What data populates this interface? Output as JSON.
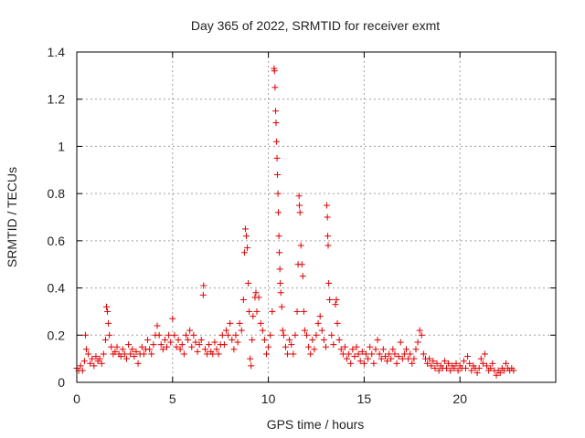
{
  "chart_data": {
    "type": "scatter",
    "title": "Day 365 of 2022, SRMTID for receiver exmt",
    "xlabel": "GPS time / hours",
    "ylabel": "SRMTID / TECUs",
    "xlim": [
      0,
      25
    ],
    "ylim": [
      0,
      1.4
    ],
    "xticks": [
      0,
      5,
      10,
      15,
      20
    ],
    "yticks": [
      0,
      0.2,
      0.4,
      0.6,
      0.8,
      1,
      1.2,
      1.4
    ],
    "xtick_labels": [
      "0",
      "5",
      "10",
      "15",
      "20"
    ],
    "ytick_labels": [
      "0",
      "0.2",
      "0.4",
      "0.6",
      "0.8",
      "1",
      "1.2",
      "1.4"
    ],
    "grid": true,
    "marker": "+",
    "color": "#e00000",
    "series": [
      {
        "name": "SRMTID",
        "points": [
          [
            0.0,
            0.06
          ],
          [
            0.1,
            0.05
          ],
          [
            0.2,
            0.07
          ],
          [
            0.3,
            0.05
          ],
          [
            0.4,
            0.09
          ],
          [
            0.45,
            0.2
          ],
          [
            0.5,
            0.14
          ],
          [
            0.6,
            0.12
          ],
          [
            0.7,
            0.08
          ],
          [
            0.8,
            0.1
          ],
          [
            0.9,
            0.07
          ],
          [
            1.0,
            0.11
          ],
          [
            1.1,
            0.09
          ],
          [
            1.2,
            0.1
          ],
          [
            1.3,
            0.08
          ],
          [
            1.4,
            0.12
          ],
          [
            1.5,
            0.18
          ],
          [
            1.55,
            0.32
          ],
          [
            1.6,
            0.3
          ],
          [
            1.65,
            0.25
          ],
          [
            1.7,
            0.2
          ],
          [
            1.8,
            0.15
          ],
          [
            1.9,
            0.12
          ],
          [
            2.0,
            0.13
          ],
          [
            2.1,
            0.15
          ],
          [
            2.2,
            0.12
          ],
          [
            2.3,
            0.11
          ],
          [
            2.4,
            0.14
          ],
          [
            2.5,
            0.12
          ],
          [
            2.6,
            0.1
          ],
          [
            2.7,
            0.16
          ],
          [
            2.8,
            0.12
          ],
          [
            2.9,
            0.14
          ],
          [
            3.0,
            0.11
          ],
          [
            3.1,
            0.13
          ],
          [
            3.2,
            0.08
          ],
          [
            3.3,
            0.12
          ],
          [
            3.4,
            0.15
          ],
          [
            3.5,
            0.12
          ],
          [
            3.6,
            0.14
          ],
          [
            3.7,
            0.18
          ],
          [
            3.8,
            0.14
          ],
          [
            3.9,
            0.12
          ],
          [
            4.0,
            0.16
          ],
          [
            4.1,
            0.2
          ],
          [
            4.2,
            0.24
          ],
          [
            4.3,
            0.2
          ],
          [
            4.4,
            0.16
          ],
          [
            4.5,
            0.14
          ],
          [
            4.6,
            0.18
          ],
          [
            4.7,
            0.15
          ],
          [
            4.8,
            0.2
          ],
          [
            4.9,
            0.17
          ],
          [
            5.0,
            0.27
          ],
          [
            5.1,
            0.2
          ],
          [
            5.2,
            0.15
          ],
          [
            5.3,
            0.18
          ],
          [
            5.4,
            0.14
          ],
          [
            5.5,
            0.16
          ],
          [
            5.6,
            0.12
          ],
          [
            5.7,
            0.2
          ],
          [
            5.8,
            0.18
          ],
          [
            5.9,
            0.22
          ],
          [
            6.0,
            0.15
          ],
          [
            6.1,
            0.2
          ],
          [
            6.2,
            0.17
          ],
          [
            6.3,
            0.13
          ],
          [
            6.4,
            0.16
          ],
          [
            6.5,
            0.18
          ],
          [
            6.6,
            0.37
          ],
          [
            6.62,
            0.41
          ],
          [
            6.7,
            0.14
          ],
          [
            6.8,
            0.12
          ],
          [
            6.9,
            0.16
          ],
          [
            7.0,
            0.13
          ],
          [
            7.1,
            0.12
          ],
          [
            7.2,
            0.17
          ],
          [
            7.3,
            0.14
          ],
          [
            7.4,
            0.12
          ],
          [
            7.5,
            0.16
          ],
          [
            7.6,
            0.2
          ],
          [
            7.7,
            0.16
          ],
          [
            7.8,
            0.22
          ],
          [
            7.9,
            0.2
          ],
          [
            8.0,
            0.25
          ],
          [
            8.1,
            0.18
          ],
          [
            8.2,
            0.14
          ],
          [
            8.3,
            0.2
          ],
          [
            8.4,
            0.17
          ],
          [
            8.5,
            0.25
          ],
          [
            8.6,
            0.22
          ],
          [
            8.7,
            0.35
          ],
          [
            8.75,
            0.55
          ],
          [
            8.8,
            0.65
          ],
          [
            8.85,
            0.62
          ],
          [
            8.9,
            0.57
          ],
          [
            8.95,
            0.42
          ],
          [
            9.0,
            0.3
          ],
          [
            9.05,
            0.1
          ],
          [
            9.1,
            0.07
          ],
          [
            9.15,
            0.18
          ],
          [
            9.2,
            0.28
          ],
          [
            9.3,
            0.36
          ],
          [
            9.35,
            0.38
          ],
          [
            9.4,
            0.3
          ],
          [
            9.5,
            0.36
          ],
          [
            9.6,
            0.25
          ],
          [
            9.7,
            0.22
          ],
          [
            9.8,
            0.18
          ],
          [
            9.9,
            0.12
          ],
          [
            10.0,
            0.15
          ],
          [
            10.1,
            0.2
          ],
          [
            10.2,
            0.3
          ],
          [
            10.3,
            1.33
          ],
          [
            10.32,
            1.32
          ],
          [
            10.35,
            1.25
          ],
          [
            10.38,
            1.15
          ],
          [
            10.4,
            1.1
          ],
          [
            10.43,
            1.02
          ],
          [
            10.45,
            0.95
          ],
          [
            10.47,
            0.88
          ],
          [
            10.5,
            0.8
          ],
          [
            10.52,
            0.72
          ],
          [
            10.55,
            0.62
          ],
          [
            10.57,
            0.55
          ],
          [
            10.6,
            0.48
          ],
          [
            10.62,
            0.42
          ],
          [
            10.65,
            0.38
          ],
          [
            10.7,
            0.32
          ],
          [
            10.75,
            0.22
          ],
          [
            10.8,
            0.2
          ],
          [
            10.9,
            0.15
          ],
          [
            11.0,
            0.12
          ],
          [
            11.1,
            0.18
          ],
          [
            11.2,
            0.16
          ],
          [
            11.3,
            0.12
          ],
          [
            11.4,
            0.2
          ],
          [
            11.5,
            0.3
          ],
          [
            11.55,
            0.5
          ],
          [
            11.6,
            0.79
          ],
          [
            11.62,
            0.75
          ],
          [
            11.65,
            0.72
          ],
          [
            11.7,
            0.58
          ],
          [
            11.75,
            0.5
          ],
          [
            11.8,
            0.45
          ],
          [
            11.85,
            0.3
          ],
          [
            11.9,
            0.22
          ],
          [
            12.0,
            0.2
          ],
          [
            12.1,
            0.15
          ],
          [
            12.2,
            0.12
          ],
          [
            12.3,
            0.18
          ],
          [
            12.4,
            0.14
          ],
          [
            12.5,
            0.2
          ],
          [
            12.6,
            0.25
          ],
          [
            12.7,
            0.28
          ],
          [
            12.8,
            0.22
          ],
          [
            12.9,
            0.18
          ],
          [
            13.0,
            0.15
          ],
          [
            13.05,
            0.75
          ],
          [
            13.08,
            0.7
          ],
          [
            13.1,
            0.62
          ],
          [
            13.12,
            0.58
          ],
          [
            13.15,
            0.42
          ],
          [
            13.2,
            0.35
          ],
          [
            13.3,
            0.2
          ],
          [
            13.4,
            0.16
          ],
          [
            13.5,
            0.33
          ],
          [
            13.55,
            0.35
          ],
          [
            13.6,
            0.25
          ],
          [
            13.7,
            0.18
          ],
          [
            13.8,
            0.14
          ],
          [
            13.9,
            0.12
          ],
          [
            14.0,
            0.15
          ],
          [
            14.1,
            0.1
          ],
          [
            14.2,
            0.12
          ],
          [
            14.3,
            0.08
          ],
          [
            14.4,
            0.14
          ],
          [
            14.5,
            0.11
          ],
          [
            14.6,
            0.15
          ],
          [
            14.7,
            0.12
          ],
          [
            14.8,
            0.09
          ],
          [
            14.9,
            0.13
          ],
          [
            15.0,
            0.08
          ],
          [
            15.1,
            0.12
          ],
          [
            15.2,
            0.1
          ],
          [
            15.3,
            0.15
          ],
          [
            15.4,
            0.12
          ],
          [
            15.5,
            0.08
          ],
          [
            15.6,
            0.14
          ],
          [
            15.7,
            0.18
          ],
          [
            15.8,
            0.12
          ],
          [
            15.9,
            0.1
          ],
          [
            16.0,
            0.14
          ],
          [
            16.1,
            0.11
          ],
          [
            16.2,
            0.09
          ],
          [
            16.3,
            0.12
          ],
          [
            16.4,
            0.1
          ],
          [
            16.5,
            0.14
          ],
          [
            16.6,
            0.12
          ],
          [
            16.7,
            0.08
          ],
          [
            16.8,
            0.11
          ],
          [
            16.9,
            0.17
          ],
          [
            17.0,
            0.1
          ],
          [
            17.1,
            0.12
          ],
          [
            17.2,
            0.14
          ],
          [
            17.3,
            0.1
          ],
          [
            17.4,
            0.12
          ],
          [
            17.5,
            0.08
          ],
          [
            17.6,
            0.1
          ],
          [
            17.7,
            0.14
          ],
          [
            17.8,
            0.17
          ],
          [
            17.9,
            0.22
          ],
          [
            18.0,
            0.2
          ],
          [
            18.1,
            0.12
          ],
          [
            18.2,
            0.1
          ],
          [
            18.3,
            0.08
          ],
          [
            18.4,
            0.1
          ],
          [
            18.5,
            0.07
          ],
          [
            18.6,
            0.09
          ],
          [
            18.7,
            0.06
          ],
          [
            18.8,
            0.08
          ],
          [
            18.9,
            0.05
          ],
          [
            19.0,
            0.07
          ],
          [
            19.1,
            0.06
          ],
          [
            19.2,
            0.09
          ],
          [
            19.3,
            0.06
          ],
          [
            19.4,
            0.08
          ],
          [
            19.5,
            0.05
          ],
          [
            19.6,
            0.07
          ],
          [
            19.7,
            0.06
          ],
          [
            19.8,
            0.08
          ],
          [
            19.9,
            0.05
          ],
          [
            20.0,
            0.07
          ],
          [
            20.1,
            0.06
          ],
          [
            20.2,
            0.09
          ],
          [
            20.3,
            0.06
          ],
          [
            20.4,
            0.11
          ],
          [
            20.5,
            0.08
          ],
          [
            20.6,
            0.05
          ],
          [
            20.7,
            0.07
          ],
          [
            20.8,
            0.06
          ],
          [
            20.9,
            0.04
          ],
          [
            21.0,
            0.06
          ],
          [
            21.1,
            0.1
          ],
          [
            21.2,
            0.08
          ],
          [
            21.3,
            0.12
          ],
          [
            21.4,
            0.07
          ],
          [
            21.5,
            0.05
          ],
          [
            21.6,
            0.06
          ],
          [
            21.7,
            0.08
          ],
          [
            21.8,
            0.05
          ],
          [
            21.9,
            0.03
          ],
          [
            22.0,
            0.05
          ],
          [
            22.1,
            0.04
          ],
          [
            22.2,
            0.06
          ],
          [
            22.3,
            0.05
          ],
          [
            22.4,
            0.08
          ],
          [
            22.5,
            0.06
          ],
          [
            22.6,
            0.05
          ],
          [
            22.7,
            0.06
          ],
          [
            22.8,
            0.05
          ]
        ]
      }
    ]
  }
}
